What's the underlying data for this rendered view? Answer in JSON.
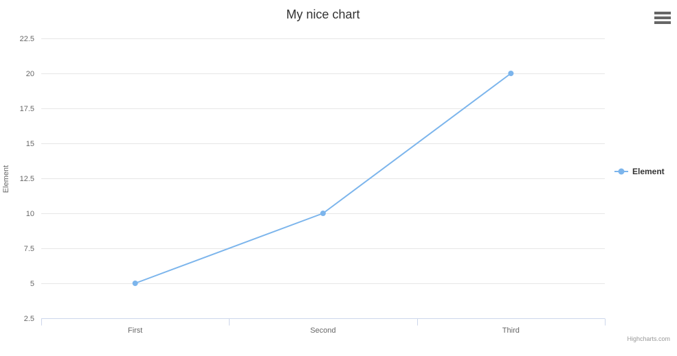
{
  "title": "My nice chart",
  "context_menu": {
    "icon": "hamburger-icon",
    "tooltip": "Chart context menu"
  },
  "legend": {
    "position": "right",
    "items": [
      {
        "label": "Element",
        "color": "#7cb5ec"
      }
    ]
  },
  "credits": "Highcharts.com",
  "chart_data": {
    "type": "line",
    "title": "My nice chart",
    "categories": [
      "First",
      "Second",
      "Third"
    ],
    "series": [
      {
        "name": "Element",
        "values": [
          5,
          10,
          20
        ],
        "color": "#7cb5ec",
        "marker_radius": 4,
        "line_width": 2
      }
    ],
    "xlabel": "",
    "ylabel": "Element",
    "ylim": [
      2.5,
      22.5
    ],
    "yticks": [
      2.5,
      5,
      7.5,
      10,
      12.5,
      15,
      17.5,
      20,
      22.5
    ],
    "grid": true,
    "legend_position": "right",
    "colors": {
      "grid_line": "#e6e6e6",
      "axis_line": "#ccd6eb",
      "tick": "#ccd6eb",
      "axis_label": "#666666",
      "axis_title": "#666666",
      "chart_title": "#333333",
      "legend_text": "#333333",
      "credits_text": "#999999",
      "background": "#ffffff"
    }
  }
}
